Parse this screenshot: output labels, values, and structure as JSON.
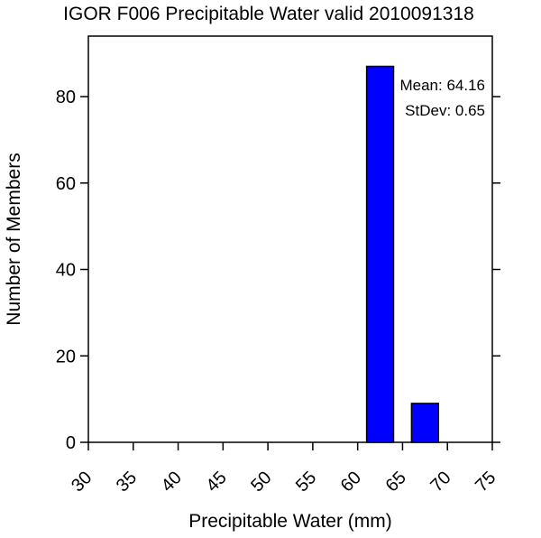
{
  "chart_data": {
    "type": "bar",
    "title": "IGOR F006 Precipitable Water valid 2010091318",
    "xlabel": "Precipitable Water (mm)",
    "ylabel": "Number of Members",
    "xlim": [
      30,
      75
    ],
    "ylim": [
      0,
      94
    ],
    "x_ticks": [
      30,
      35,
      40,
      45,
      50,
      55,
      60,
      65,
      70,
      75
    ],
    "y_ticks": [
      0,
      20,
      40,
      60,
      80
    ],
    "bars": [
      {
        "x_start": 61,
        "x_end": 64,
        "value": 87
      },
      {
        "x_start": 66,
        "x_end": 69,
        "value": 9
      }
    ],
    "bar_color": "#0000ff",
    "annotations": {
      "mean": "Mean: 64.16",
      "stdev": "StDev: 0.65"
    },
    "grid": false,
    "legend": "none"
  }
}
